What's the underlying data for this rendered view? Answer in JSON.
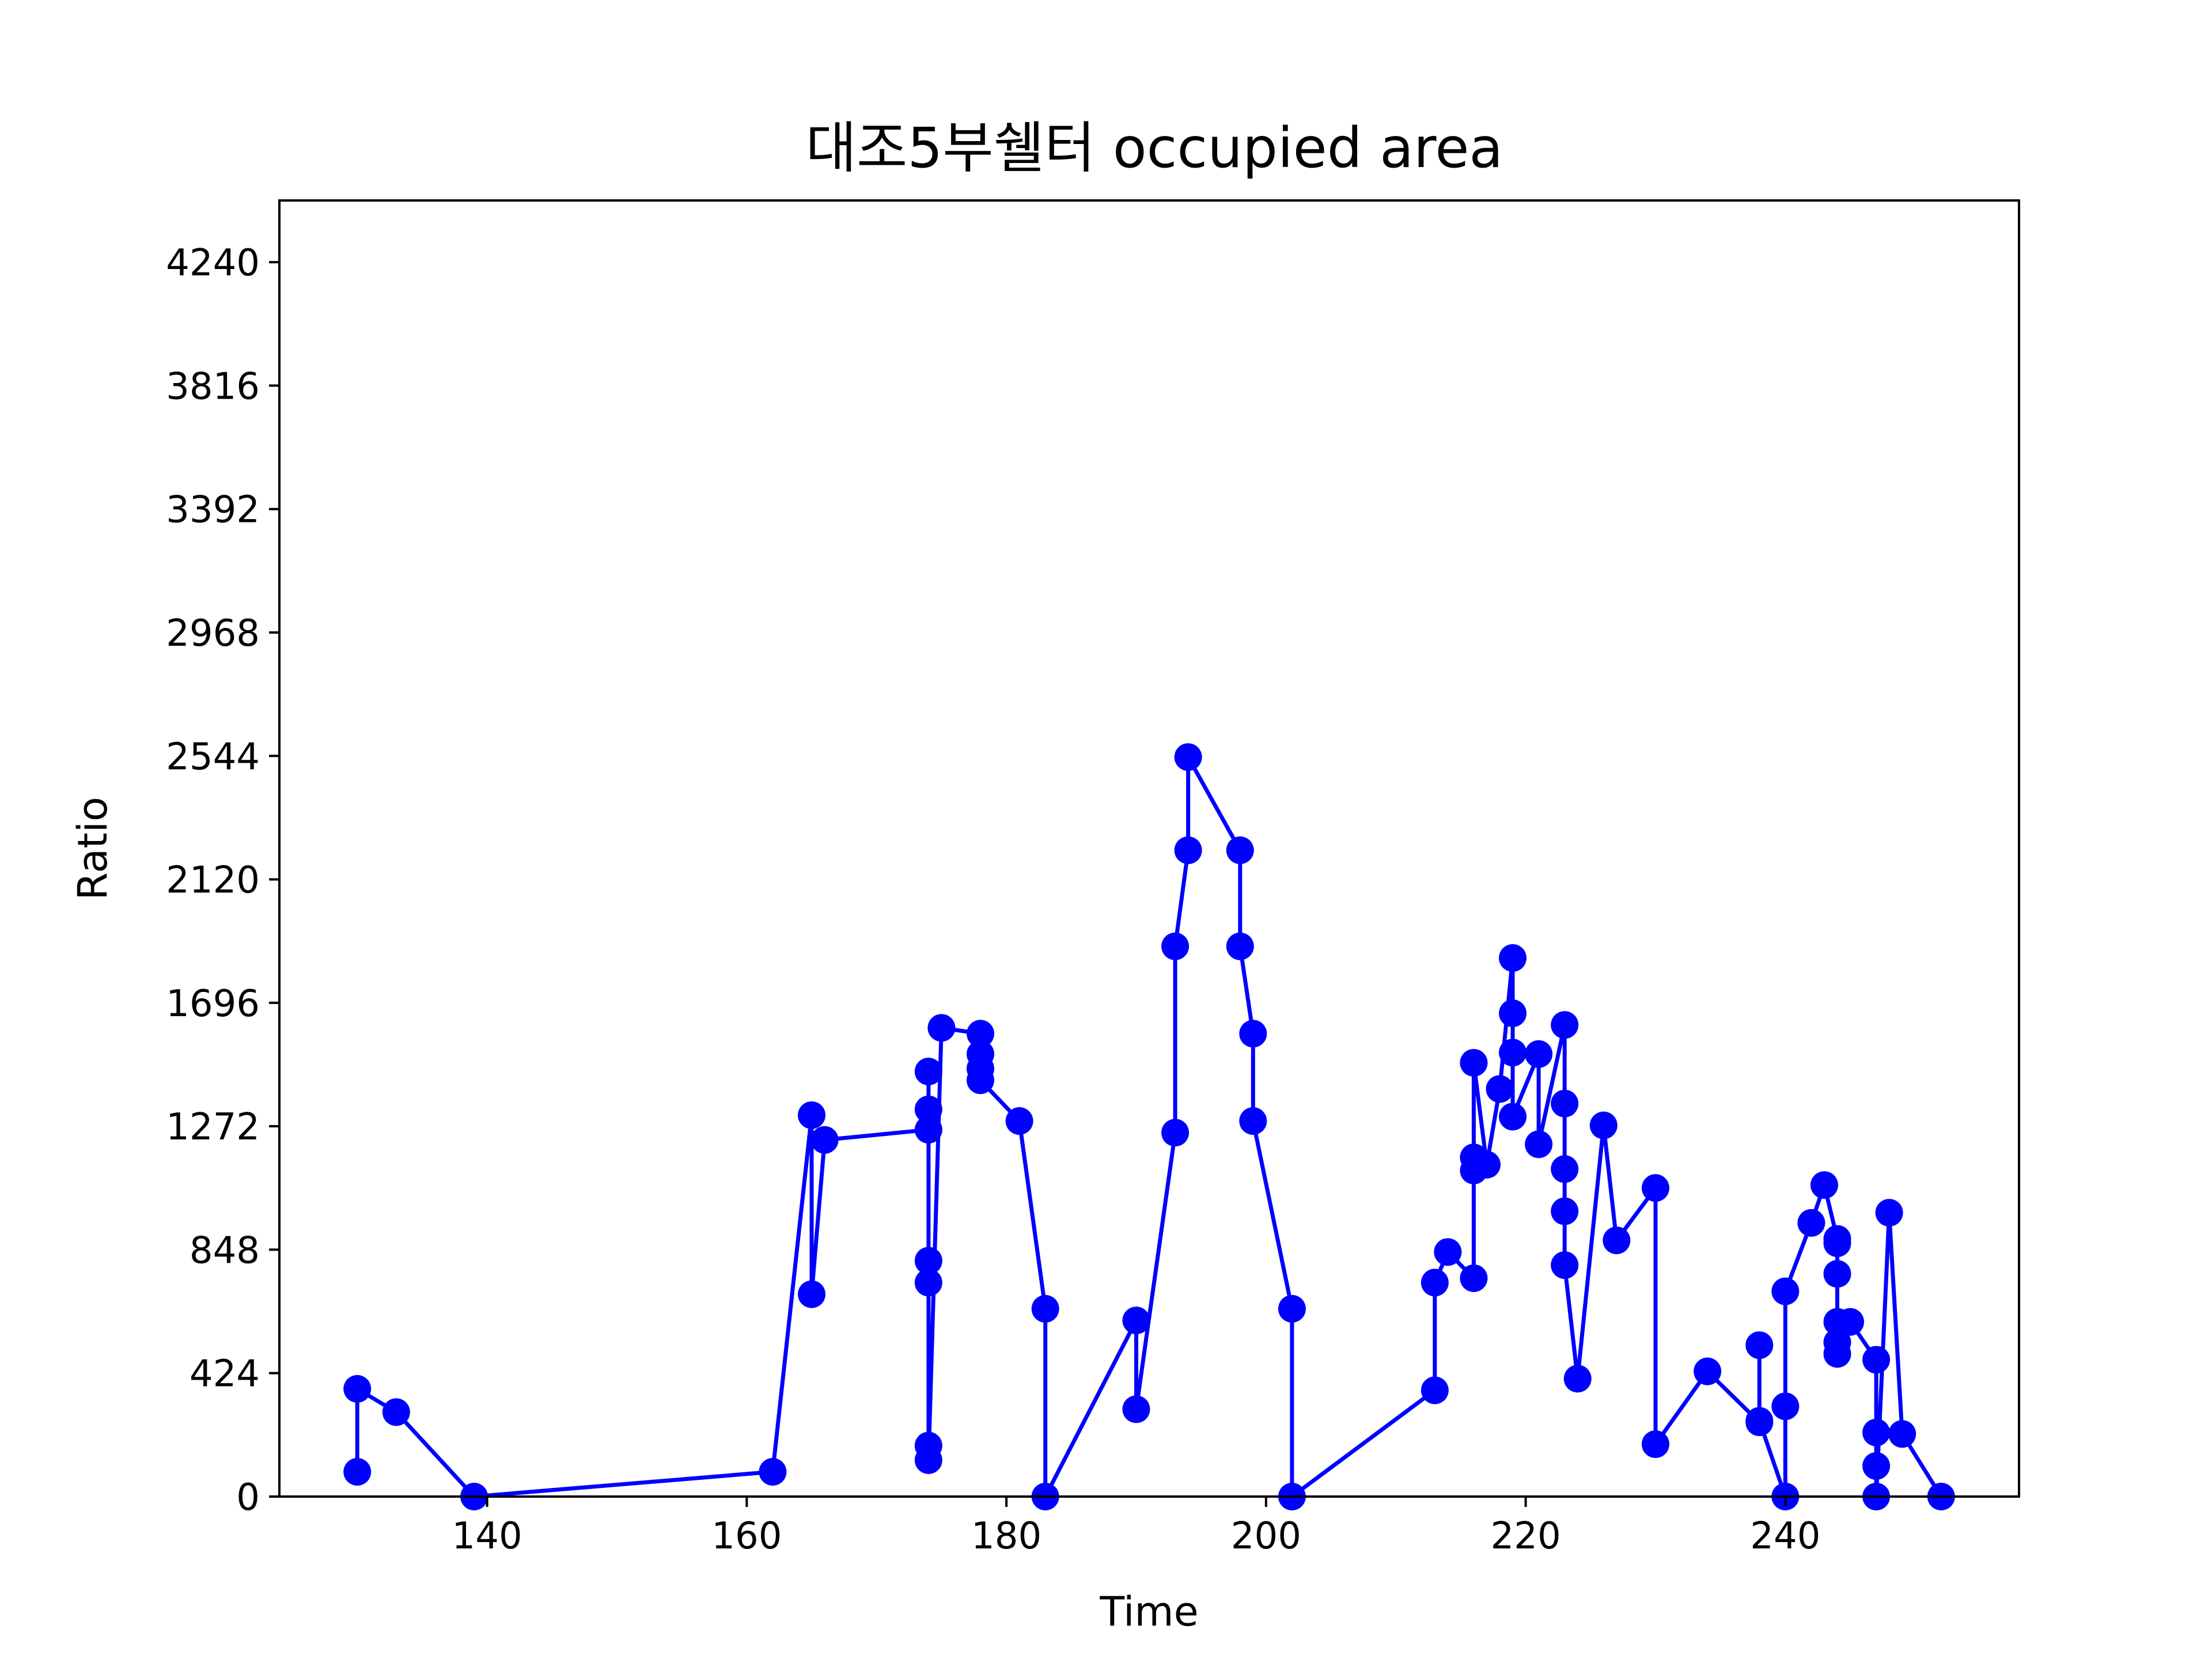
{
  "chart_data": {
    "type": "line",
    "title": "대조5부쉘터 occupied area",
    "xlabel": "Time",
    "ylabel": "Ratio",
    "xlim": [
      124,
      258
    ],
    "ylim": [
      0,
      4452
    ],
    "xticks": [
      140,
      160,
      180,
      200,
      220,
      240
    ],
    "yticks": [
      0,
      424,
      848,
      1272,
      1696,
      2120,
      2544,
      2968,
      3392,
      3816,
      4240
    ],
    "grid": false,
    "legend": "none",
    "marker": "circle",
    "color": "#0000ff",
    "series": [
      {
        "x": [
          130,
          130,
          133,
          139,
          162,
          165,
          165,
          166,
          174,
          174,
          174,
          174,
          174,
          174,
          174,
          175,
          178,
          178,
          178,
          178,
          181,
          183,
          183,
          190,
          190,
          193,
          193,
          194,
          194,
          198,
          198,
          199,
          199,
          202,
          202,
          213,
          213,
          214,
          216,
          216,
          216,
          216,
          217,
          218,
          219,
          219,
          219,
          219,
          221,
          221,
          223,
          223,
          223,
          223,
          223,
          224,
          226,
          227,
          230,
          230,
          234,
          238,
          238,
          238,
          240,
          240,
          240,
          242,
          243,
          244,
          244,
          244,
          244,
          244,
          244,
          245,
          247,
          247,
          247,
          247,
          248,
          249,
          252
        ],
        "y": [
          85,
          370,
          290,
          0,
          85,
          1310,
          695,
          1225,
          1260,
          1330,
          1460,
          810,
          735,
          175,
          125,
          1610,
          1590,
          1520,
          1470,
          1430,
          1290,
          645,
          0,
          605,
          300,
          1250,
          1890,
          2220,
          2540,
          2220,
          1890,
          1590,
          1290,
          645,
          0,
          365,
          735,
          840,
          750,
          1120,
          1165,
          1490,
          1140,
          1400,
          1850,
          1660,
          1525,
          1305,
          1520,
          1210,
          1620,
          1350,
          1125,
          980,
          795,
          405,
          1275,
          880,
          1060,
          180,
          430,
          255,
          520,
          260,
          0,
          310,
          705,
          940,
          1070,
          885,
          870,
          765,
          600,
          530,
          490,
          600,
          470,
          220,
          105,
          0,
          975,
          215,
          0
        ]
      }
    ]
  }
}
